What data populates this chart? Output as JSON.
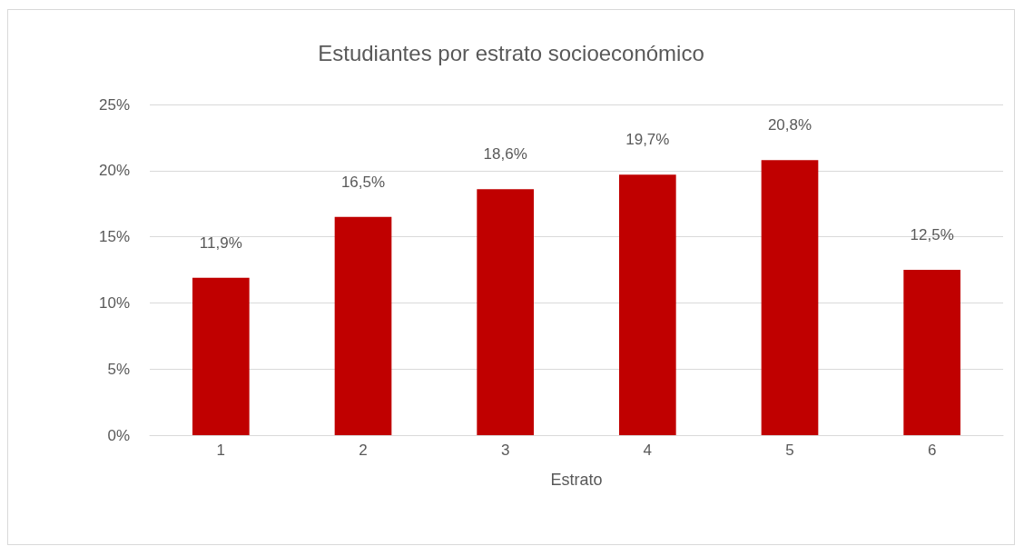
{
  "chart_data": {
    "type": "bar",
    "title": "Estudiantes por estrato socioeconómico",
    "xlabel": "Estrato",
    "categories": [
      "1",
      "2",
      "3",
      "4",
      "5",
      "6"
    ],
    "values": [
      11.9,
      16.5,
      18.6,
      19.7,
      20.8,
      12.5
    ],
    "value_labels": [
      "11,9%",
      "16,5%",
      "18,6%",
      "19,7%",
      "20,8%",
      "12,5%"
    ],
    "color": "#c00000",
    "ylim": [
      0,
      25
    ],
    "yticks": [
      {
        "value": 0,
        "label": "0%"
      },
      {
        "value": 5,
        "label": "5%"
      },
      {
        "value": 10,
        "label": "10%"
      },
      {
        "value": 15,
        "label": "15%"
      },
      {
        "value": 20,
        "label": "20%"
      },
      {
        "value": 25,
        "label": "25%"
      }
    ],
    "grid": "y"
  }
}
